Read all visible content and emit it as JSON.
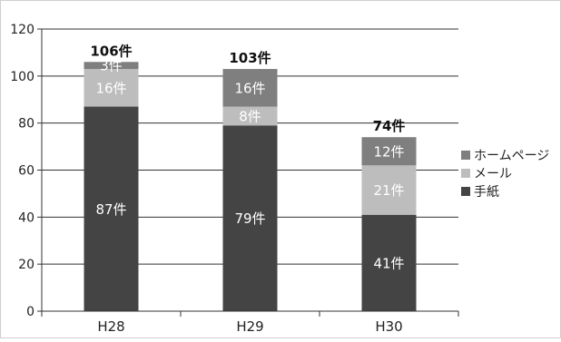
{
  "chart_data": {
    "type": "bar",
    "stacked": true,
    "categories": [
      "H28",
      "H29",
      "H30"
    ],
    "ylim": [
      0,
      120
    ],
    "yticks": [
      0,
      20,
      40,
      60,
      80,
      100,
      120
    ],
    "grid": true,
    "legend_position": "right",
    "series": [
      {
        "name": "手紙",
        "color": "#444444",
        "label_color": "#ffffff",
        "values": [
          87,
          79,
          41
        ],
        "labels": [
          "87件",
          "79件",
          "41件"
        ]
      },
      {
        "name": "メール",
        "color": "#bdbdbd",
        "label_color": "#ffffff",
        "values": [
          16,
          8,
          21
        ],
        "labels": [
          "16件",
          "8件",
          "21件"
        ]
      },
      {
        "name": "ホームページ",
        "color": "#7f7f7f",
        "label_color": "#ffffff",
        "values": [
          3,
          16,
          12
        ],
        "labels": [
          "3件",
          "16件",
          "12件"
        ]
      }
    ],
    "totals": [
      106,
      103,
      74
    ],
    "total_labels": [
      "106件",
      "103件",
      "74件"
    ],
    "legend_order": [
      "ホームページ",
      "メール",
      "手紙"
    ]
  }
}
